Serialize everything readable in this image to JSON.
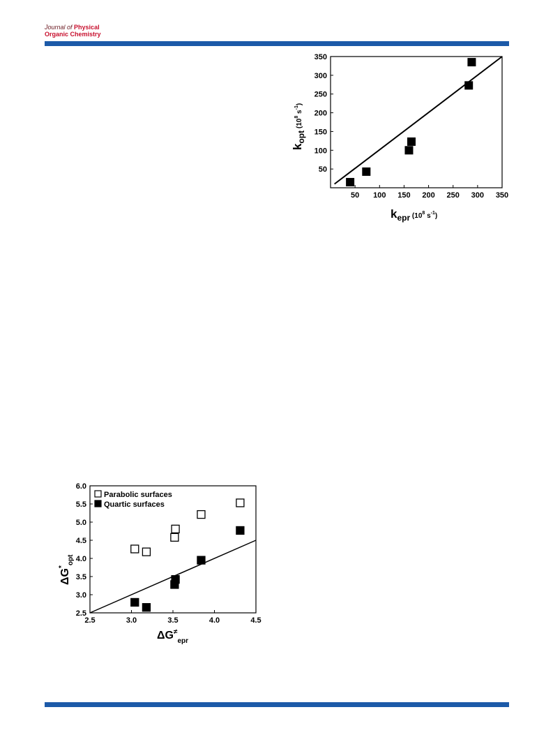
{
  "header": {
    "journal_line1_prefix": "Journal of",
    "journal_line1_strong": "Physical",
    "journal_line2": "Organic Chemistry",
    "bar_color": "#1c5aa8",
    "logo_color": "#c8102e"
  },
  "chart_data": [
    {
      "type": "scatter",
      "x_ticks": [
        50,
        100,
        150,
        200,
        250,
        300,
        350
      ],
      "y_ticks": [
        50,
        100,
        150,
        200,
        250,
        300,
        350
      ],
      "xlim": [
        0,
        350
      ],
      "ylim": [
        0,
        350
      ],
      "xlabel": {
        "main": "k",
        "sub": "epr",
        "unit": "(10",
        "unit_sup": "8",
        "unit_end": " s",
        "unit_end_sup": "-1",
        "close": ")"
      },
      "ylabel": {
        "main": "k",
        "sub": "opt",
        "unit": "(10",
        "unit_sup": "8",
        "unit_end": " s",
        "unit_end_sup": "-1",
        "close": ")"
      },
      "series": [
        {
          "marker": "filled-square",
          "points": [
            [
              40,
              15
            ],
            [
              73,
              43
            ],
            [
              160,
              100
            ],
            [
              165,
              123
            ],
            [
              282,
              273
            ],
            [
              288,
              335
            ]
          ]
        }
      ],
      "fit_line": [
        [
          8,
          10
        ],
        [
          350,
          350
        ]
      ],
      "grid": false
    },
    {
      "type": "scatter",
      "x_ticks": [
        "2.5",
        "3.0",
        "3.5",
        "4.0",
        "4.5"
      ],
      "y_ticks": [
        "2.5",
        "3.0",
        "3.5",
        "4.0",
        "4.5",
        "5.0",
        "5.5",
        "6.0"
      ],
      "xlim": [
        2.5,
        4.5
      ],
      "ylim": [
        2.5,
        6.0
      ],
      "xlabel": {
        "main": "ΔG",
        "sup": "≠",
        "sub": "epr"
      },
      "ylabel": {
        "main": "ΔG",
        "sup": "*",
        "sub": "opt"
      },
      "legend": {
        "placement": "top-left"
      },
      "series": [
        {
          "name": "Parabolic surfaces",
          "marker": "open-square",
          "points": [
            [
              3.04,
              4.26
            ],
            [
              3.18,
              4.18
            ],
            [
              3.52,
              4.58
            ],
            [
              3.53,
              4.81
            ],
            [
              3.84,
              5.21
            ],
            [
              4.31,
              5.53
            ]
          ]
        },
        {
          "name": "Quartic surfaces",
          "marker": "filled-square",
          "points": [
            [
              3.04,
              2.79
            ],
            [
              3.18,
              2.65
            ],
            [
              3.52,
              3.28
            ],
            [
              3.53,
              3.42
            ],
            [
              3.84,
              3.95
            ],
            [
              4.31,
              4.77
            ]
          ]
        }
      ],
      "fit_line": [
        [
          2.5,
          2.5
        ],
        [
          4.5,
          4.5
        ]
      ],
      "grid": false
    }
  ]
}
